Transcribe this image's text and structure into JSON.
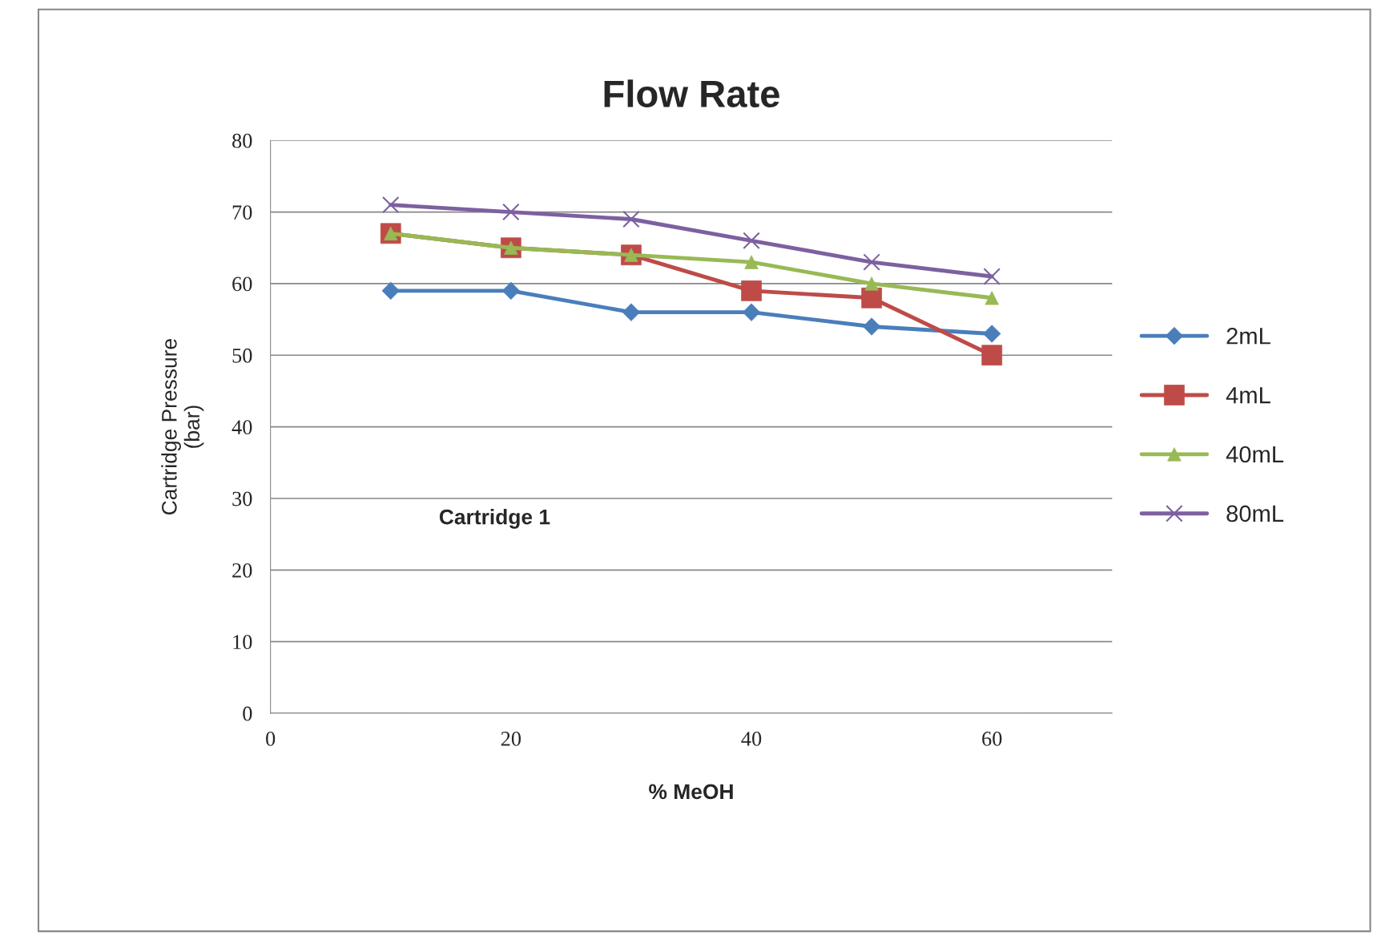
{
  "chart_data": {
    "type": "line",
    "title": "Flow Rate",
    "xlabel": "% MeOH",
    "ylabel": "Cartridge Pressure\n(bar)",
    "annotations": [
      "Cartridge 1"
    ],
    "x": [
      10,
      20,
      30,
      40,
      50,
      60
    ],
    "series": [
      {
        "name": "2mL",
        "color": "#4a7ebb",
        "marker": "diamond",
        "values": [
          59,
          59,
          56,
          56,
          54,
          53
        ]
      },
      {
        "name": "4mL",
        "color": "#be4b48",
        "marker": "square",
        "values": [
          67,
          65,
          64,
          59,
          58,
          50
        ]
      },
      {
        "name": "40mL",
        "color": "#98b954",
        "marker": "triangle",
        "values": [
          67,
          65,
          64,
          63,
          60,
          58
        ]
      },
      {
        "name": "80mL",
        "color": "#7d60a0",
        "marker": "cross",
        "values": [
          71,
          70,
          69,
          66,
          63,
          61
        ]
      }
    ],
    "xlim": [
      0,
      70
    ],
    "xticks": [
      0,
      20,
      40,
      60
    ],
    "ylim": [
      0,
      80
    ],
    "yticks": [
      0,
      10,
      20,
      30,
      40,
      50,
      60,
      70,
      80
    ],
    "grid": "y",
    "legend": "right",
    "line_style": "solid"
  }
}
